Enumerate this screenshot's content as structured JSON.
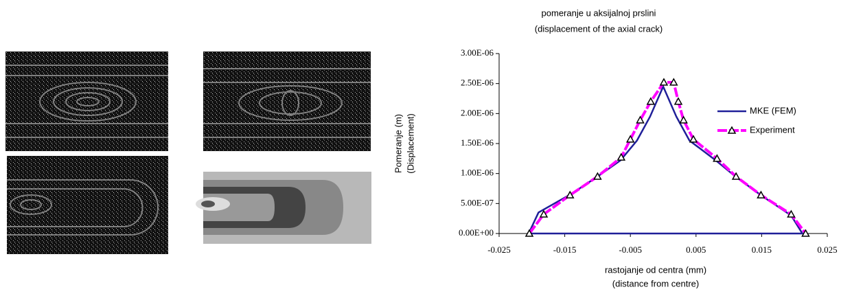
{
  "chart_data": {
    "type": "line",
    "title": [
      "pomeranje u aksijalnoj prslini",
      "(displacement of the axial crack)"
    ],
    "x_label": [
      "rastojanje od centra  (mm)",
      "(distance from centre)"
    ],
    "y_label": [
      "Pomeranje (m)",
      "(Displacement)"
    ],
    "xlim": [
      -0.025,
      0.025
    ],
    "xticks": [
      -0.025,
      -0.015,
      -0.005,
      0.005,
      0.015,
      0.025
    ],
    "ylim": [
      0,
      3e-06
    ],
    "yticks": [
      {
        "value": 0,
        "label": "0.00E+00"
      },
      {
        "value": 5e-07,
        "label": "5.00E-07"
      },
      {
        "value": 1e-06,
        "label": "1.00E-06"
      },
      {
        "value": 1.5e-06,
        "label": "1.50E-06"
      },
      {
        "value": 2e-06,
        "label": "2.00E-06"
      },
      {
        "value": 2.5e-06,
        "label": "2.50E-06"
      },
      {
        "value": 3e-06,
        "label": "3.00E-06"
      }
    ],
    "grid": false,
    "series": [
      {
        "name": "MKE (FEM)",
        "color": "#1f1f99",
        "x": [
          -0.0205,
          -0.019,
          -0.014,
          -0.01,
          -0.0065,
          -0.004,
          -0.002,
          0,
          0.002,
          0.004,
          0.008,
          0.011,
          0.015,
          0.0195,
          0.0212,
          -0.0205
        ],
        "values": [
          0,
          3.5e-07,
          6.6e-07,
          9.5e-07,
          1.22e-06,
          1.55e-06,
          1.95e-06,
          2.45e-06,
          1.95e-06,
          1.55e-06,
          1.22e-06,
          9.5e-07,
          6.3e-07,
          3e-07,
          0,
          0
        ]
      },
      {
        "name": "Experiment",
        "color": "#ff00ff",
        "marker": "triangle",
        "x": [
          -0.0204,
          -0.0182,
          -0.0142,
          -0.01,
          -0.0064,
          -0.005,
          -0.0035,
          -0.0019,
          0.0001,
          0.0016,
          0.0023,
          0.0031,
          0.0046,
          0.0082,
          0.0111,
          0.0149,
          0.0195,
          0.0217
        ],
        "values": [
          0,
          3.2e-07,
          6.4e-07,
          9.5e-07,
          1.27e-06,
          1.57e-06,
          1.89e-06,
          2.2e-06,
          2.52e-06,
          2.52e-06,
          2.2e-06,
          1.89e-06,
          1.57e-06,
          1.25e-06,
          9.5e-07,
          6.4e-07,
          3.2e-07,
          0
        ]
      }
    ]
  }
}
